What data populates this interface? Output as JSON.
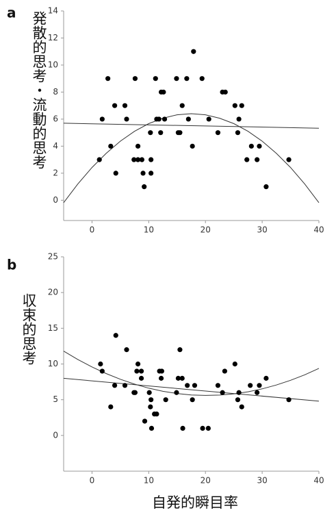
{
  "chart_data": [
    {
      "type": "scatter",
      "panel": "a",
      "y_label": "発散的思考・流動的思考",
      "x": [
        1.3,
        1.8,
        2.8,
        3.3,
        4,
        4.2,
        5.8,
        6.1,
        7.4,
        7.6,
        8.1,
        8.1,
        8.8,
        9,
        9.2,
        10.3,
        10.4,
        10.4,
        11.2,
        11.4,
        11.8,
        12.1,
        12.2,
        12.6,
        12.8,
        14.9,
        15.2,
        15.5,
        15.9,
        16.7,
        17,
        17.7,
        17.9,
        19.4,
        20.6,
        22.2,
        23,
        23.5,
        25.2,
        25.7,
        25.9,
        26.4,
        27.3,
        28.1,
        29.1,
        29.5,
        30.7,
        34.7
      ],
      "values": [
        3,
        6,
        9,
        4,
        7,
        2,
        7,
        6,
        3,
        9,
        4,
        3,
        3,
        2,
        1,
        5,
        3,
        2,
        9,
        6,
        6,
        5,
        8,
        8,
        6,
        9,
        5,
        5,
        7,
        9,
        6,
        4,
        11,
        9,
        6,
        5,
        8,
        8,
        7,
        5,
        6,
        7,
        3,
        4,
        3,
        4,
        1,
        3
      ],
      "color": "#000000",
      "fits": [
        {
          "x": [
            -5,
            40
          ],
          "values": [
            5.7,
            5.33
          ]
        },
        {
          "x": [
            -5,
            -2.5,
            0,
            2.5,
            5,
            7.5,
            10,
            12.5,
            15,
            17.5,
            20,
            22.5,
            25,
            27.5,
            30,
            32.5,
            35,
            37.5,
            40
          ],
          "values": [
            -0.18,
            1.2,
            2.42,
            3.47,
            4.37,
            5.1,
            5.67,
            6.07,
            6.32,
            6.4,
            6.32,
            6.07,
            5.67,
            5.1,
            4.37,
            3.47,
            2.42,
            1.2,
            -0.18
          ]
        }
      ],
      "xlim": [
        -5,
        40
      ],
      "xticks": [
        0,
        10,
        20,
        30,
        40
      ],
      "ylim": [
        -1.5,
        14
      ],
      "yticks": [
        0,
        2,
        4,
        6,
        8,
        10,
        12,
        14
      ]
    },
    {
      "type": "scatter",
      "panel": "b",
      "y_label": "収束的思考",
      "x_label": "自発的瞬目率",
      "x": [
        1.5,
        1.8,
        3.3,
        4,
        4.2,
        5.8,
        6.1,
        7.4,
        7.6,
        8.1,
        7.9,
        8.7,
        8.7,
        9.3,
        10.1,
        10.3,
        10.4,
        10.5,
        11,
        11.4,
        11.9,
        12.2,
        12.3,
        13,
        14.9,
        15.2,
        15.5,
        15.9,
        16,
        16.8,
        17.7,
        18.1,
        19.5,
        20.5,
        22.2,
        23,
        23.4,
        25.2,
        25.7,
        25.9,
        26.4,
        27.9,
        29.1,
        29.5,
        30.7,
        34.7
      ],
      "values": [
        10,
        9,
        4,
        7,
        14,
        7,
        12,
        6,
        6,
        10,
        9,
        9,
        8,
        2,
        6,
        4,
        5,
        1,
        3,
        3,
        9,
        8,
        9,
        5,
        6,
        8,
        12,
        8,
        1,
        7,
        5,
        7,
        1,
        1,
        7,
        6,
        9,
        10,
        5,
        6,
        4,
        7,
        6,
        7,
        8,
        5
      ],
      "color": "#000000",
      "fits": [
        {
          "x": [
            -5,
            40
          ],
          "values": [
            8.0,
            4.8
          ]
        },
        {
          "x": [
            -5,
            -2.5,
            0,
            2.5,
            5,
            7.5,
            10,
            12.5,
            15,
            17.5,
            20,
            22.5,
            25,
            27.5,
            30,
            32.5,
            35,
            37.5,
            40
          ],
          "values": [
            11.8,
            10.63,
            9.59,
            8.66,
            7.86,
            7.18,
            6.62,
            6.18,
            5.87,
            5.67,
            5.6,
            5.65,
            5.82,
            6.11,
            6.52,
            7.06,
            7.72,
            8.49,
            9.39
          ]
        }
      ],
      "xlim": [
        -5,
        40
      ],
      "xticks": [
        0,
        10,
        20,
        30,
        40
      ],
      "ylim": [
        -5,
        25
      ],
      "yticks": [
        0,
        5,
        10,
        15,
        20,
        25
      ]
    }
  ]
}
